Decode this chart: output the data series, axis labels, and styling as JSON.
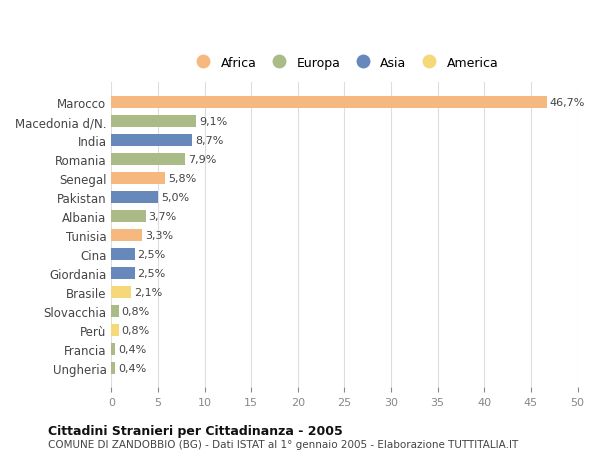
{
  "countries": [
    "Marocco",
    "Macedonia d/N.",
    "India",
    "Romania",
    "Senegal",
    "Pakistan",
    "Albania",
    "Tunisia",
    "Cina",
    "Giordania",
    "Brasile",
    "Slovacchia",
    "Perù",
    "Francia",
    "Ungheria"
  ],
  "values": [
    46.7,
    9.1,
    8.7,
    7.9,
    5.8,
    5.0,
    3.7,
    3.3,
    2.5,
    2.5,
    2.1,
    0.8,
    0.8,
    0.4,
    0.4
  ],
  "labels": [
    "46,7%",
    "9,1%",
    "8,7%",
    "7,9%",
    "5,8%",
    "5,0%",
    "3,7%",
    "3,3%",
    "2,5%",
    "2,5%",
    "2,1%",
    "0,8%",
    "0,8%",
    "0,4%",
    "0,4%"
  ],
  "continents": [
    "Africa",
    "Europa",
    "Asia",
    "Europa",
    "Africa",
    "Asia",
    "Europa",
    "Africa",
    "Asia",
    "Asia",
    "America",
    "Europa",
    "America",
    "Europa",
    "Europa"
  ],
  "continent_colors": {
    "Africa": "#F5B980",
    "Europa": "#AABB88",
    "Asia": "#6688BB",
    "America": "#F5D878"
  },
  "legend_order": [
    "Africa",
    "Europa",
    "Asia",
    "America"
  ],
  "title": "Cittadini Stranieri per Cittadinanza - 2005",
  "subtitle": "COMUNE DI ZANDOBBIO (BG) - Dati ISTAT al 1° gennaio 2005 - Elaborazione TUTTITALIA.IT",
  "xlim": [
    0,
    50
  ],
  "xticks": [
    0,
    5,
    10,
    15,
    20,
    25,
    30,
    35,
    40,
    45,
    50
  ],
  "background_color": "#ffffff",
  "grid_color": "#dddddd"
}
